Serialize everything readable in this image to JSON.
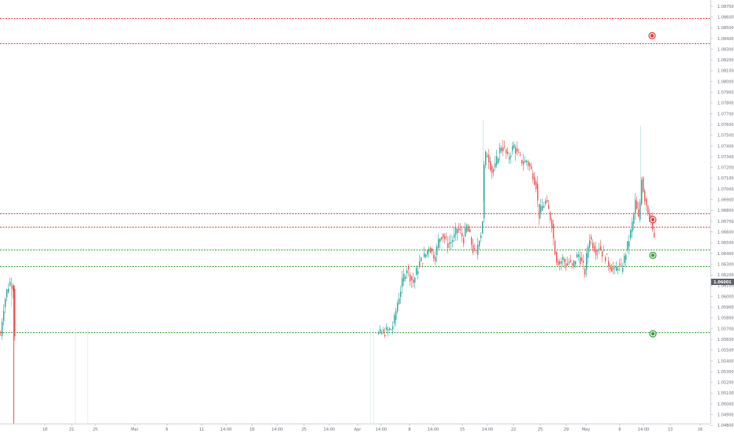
{
  "chart_data": {
    "type": "candlestick",
    "instrument": "",
    "title": "",
    "xlabel": "",
    "ylabel": "",
    "ylim": [
      1.0386,
      1.0872
    ],
    "grid": false,
    "colors": {
      "up": "#26a69a",
      "down": "#ef5350",
      "resistance": "#e53935",
      "support": "#2e9e2e",
      "axis_text": "#6a6d78",
      "last_price_bg": "#5d606b"
    },
    "x_ticks": [
      "18",
      "21",
      "25",
      "Mar",
      "6",
      "11",
      "14:00",
      "18",
      "14:00",
      "25",
      "14:00",
      "Apr",
      "14:00",
      "8",
      "14:00",
      "15",
      "14:00",
      "22",
      "25",
      "29",
      "May",
      "6",
      "14:00",
      "13",
      "16"
    ],
    "y_ticks": [
      "1.08700",
      "1.08600",
      "1.08500",
      "1.08400",
      "1.08300",
      "1.08200",
      "1.08100",
      "1.08000",
      "1.07900",
      "1.07800",
      "1.07700",
      "1.07600",
      "1.07500",
      "1.07400",
      "1.07300",
      "1.07200",
      "1.07100",
      "1.07000",
      "1.06900",
      "1.06800",
      "1.06700",
      "1.06600",
      "1.06500",
      "1.06400",
      "1.06300",
      "1.06200",
      "1.06100",
      "1.06000",
      "1.05900",
      "1.05800",
      "1.05700",
      "1.05600",
      "1.05500",
      "1.05400",
      "1.05300",
      "1.05200",
      "1.05100",
      "1.05000",
      "1.04900",
      "1.04800"
    ],
    "last_price": "1.06001",
    "horizontal_lines": [
      {
        "name": "resistance-1",
        "price": 1.0851,
        "kind": "resistance"
      },
      {
        "name": "resistance-2",
        "price": 1.0822,
        "kind": "resistance"
      },
      {
        "name": "resistance-3",
        "price": 1.0627,
        "kind": "resistance"
      },
      {
        "name": "resistance-4",
        "price": 1.0612,
        "kind": "resistance"
      },
      {
        "name": "support-1",
        "price": 1.0586,
        "kind": "support"
      },
      {
        "name": "support-2",
        "price": 1.0567,
        "kind": "support"
      },
      {
        "name": "support-3",
        "price": 1.0491,
        "kind": "support"
      }
    ],
    "markers": [
      {
        "name": "resistance-marker-top",
        "x": 828,
        "price": 1.0831,
        "kind": "resistance"
      },
      {
        "name": "resistance-marker-mid",
        "x": 829,
        "price": 1.062,
        "kind": "resistance"
      },
      {
        "name": "support-marker-mid",
        "x": 829,
        "price": 1.0579,
        "kind": "support"
      },
      {
        "name": "support-marker-low",
        "x": 829,
        "price": 1.0489,
        "kind": "support"
      }
    ],
    "price_path": [
      [
        0,
        1.0488
      ],
      [
        3,
        1.0515
      ],
      [
        6,
        1.053
      ],
      [
        9,
        1.0542
      ],
      [
        12,
        1.0548
      ],
      [
        15,
        1.0545
      ],
      [
        17,
        1.054
      ],
      [
        18,
        1.049
      ],
      [
        480,
        1.0488
      ],
      [
        490,
        1.0492
      ],
      [
        497,
        1.0495
      ],
      [
        500,
        1.0505
      ],
      [
        504,
        1.0525
      ],
      [
        508,
        1.054
      ],
      [
        512,
        1.0555
      ],
      [
        516,
        1.0565
      ],
      [
        520,
        1.0555
      ],
      [
        524,
        1.0548
      ],
      [
        528,
        1.056
      ],
      [
        532,
        1.057
      ],
      [
        536,
        1.0575
      ],
      [
        540,
        1.058
      ],
      [
        544,
        1.059
      ],
      [
        548,
        1.0582
      ],
      [
        552,
        1.0578
      ],
      [
        556,
        1.0595
      ],
      [
        560,
        1.0605
      ],
      [
        564,
        1.0598
      ],
      [
        568,
        1.0592
      ],
      [
        572,
        1.0595
      ],
      [
        576,
        1.06
      ],
      [
        580,
        1.061
      ],
      [
        584,
        1.0605
      ],
      [
        588,
        1.0598
      ],
      [
        592,
        1.0612
      ],
      [
        596,
        1.06
      ],
      [
        600,
        1.0585
      ],
      [
        604,
        1.058
      ],
      [
        607,
        1.0598
      ],
      [
        610,
        1.0605
      ],
      [
        612,
        1.062
      ],
      [
        614,
        1.068
      ],
      [
        617,
        1.07
      ],
      [
        620,
        1.069
      ],
      [
        624,
        1.0675
      ],
      [
        628,
        1.068
      ],
      [
        632,
        1.0695
      ],
      [
        636,
        1.0705
      ],
      [
        640,
        1.07
      ],
      [
        644,
        1.069
      ],
      [
        648,
        1.0698
      ],
      [
        652,
        1.0705
      ],
      [
        656,
        1.0695
      ],
      [
        660,
        1.069
      ],
      [
        664,
        1.0685
      ],
      [
        668,
        1.0688
      ],
      [
        672,
        1.068
      ],
      [
        676,
        1.0672
      ],
      [
        680,
        1.066
      ],
      [
        682,
        1.064
      ],
      [
        684,
        1.0625
      ],
      [
        688,
        1.0635
      ],
      [
        692,
        1.064
      ],
      [
        696,
        1.063
      ],
      [
        700,
        1.0615
      ],
      [
        703,
        1.059
      ],
      [
        706,
        1.0575
      ],
      [
        710,
        1.057
      ],
      [
        714,
        1.0575
      ],
      [
        718,
        1.0568
      ],
      [
        722,
        1.0572
      ],
      [
        726,
        1.0565
      ],
      [
        730,
        1.0575
      ],
      [
        734,
        1.058
      ],
      [
        738,
        1.057
      ],
      [
        742,
        1.056
      ],
      [
        745,
        1.0585
      ],
      [
        748,
        1.06
      ],
      [
        752,
        1.0592
      ],
      [
        756,
        1.0585
      ],
      [
        760,
        1.059
      ],
      [
        764,
        1.0582
      ],
      [
        768,
        1.0578
      ],
      [
        772,
        1.057
      ],
      [
        776,
        1.0565
      ],
      [
        780,
        1.056
      ],
      [
        784,
        1.0568
      ],
      [
        788,
        1.0562
      ],
      [
        792,
        1.0575
      ],
      [
        796,
        1.059
      ],
      [
        800,
        1.0605
      ],
      [
        804,
        1.0625
      ],
      [
        806,
        1.064
      ],
      [
        808,
        1.063
      ],
      [
        810,
        1.062
      ],
      [
        812,
        1.064
      ],
      [
        814,
        1.067
      ],
      [
        816,
        1.0655
      ],
      [
        818,
        1.0645
      ],
      [
        820,
        1.0638
      ],
      [
        822,
        1.063
      ],
      [
        824,
        1.0625
      ],
      [
        826,
        1.0618
      ],
      [
        828,
        1.0605
      ],
      [
        830,
        1.06
      ]
    ]
  }
}
